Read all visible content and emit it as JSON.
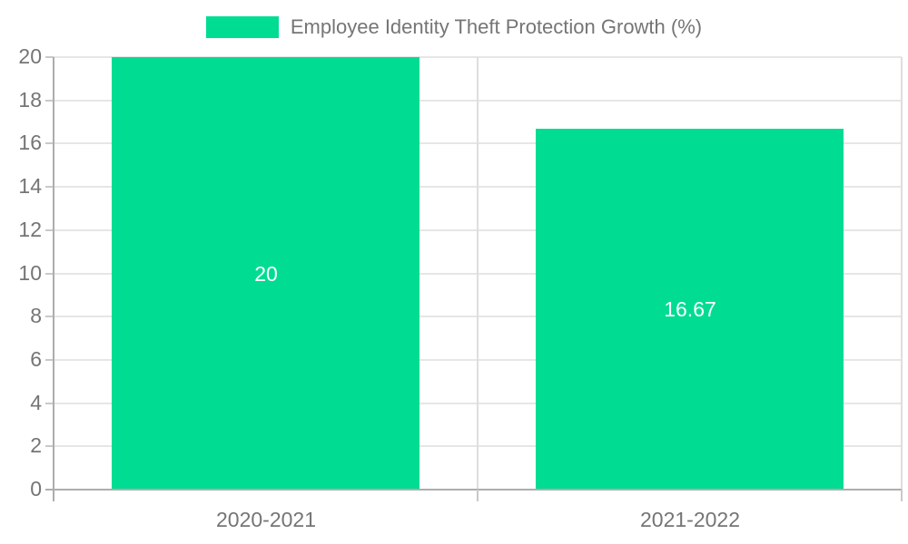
{
  "legend": {
    "label": "Employee Identity Theft Protection Growth (%)"
  },
  "chart_data": {
    "type": "bar",
    "title": "",
    "categories": [
      "2020-2021",
      "2021-2022"
    ],
    "series": [
      {
        "name": "Employee Identity Theft Protection Growth (%)",
        "values": [
          20,
          16.67
        ]
      }
    ],
    "value_labels": [
      "20",
      "16.67"
    ],
    "xlabel": "",
    "ylabel": "",
    "ylim": [
      0,
      20
    ],
    "yticks": [
      0,
      2,
      4,
      6,
      8,
      10,
      12,
      14,
      16,
      18,
      20
    ],
    "grid": "horizontal",
    "legend_position": "top-center",
    "bar_label_position": "inside-center"
  },
  "colors": {
    "bar": "#00dc92",
    "bar_label": "#ffffff",
    "axis": "#adadad",
    "gridline": "#e6e6e6",
    "divider": "#dedede",
    "tick_mark": "#c9c9c9",
    "tick_text": "#757575",
    "background": "#ffffff"
  }
}
